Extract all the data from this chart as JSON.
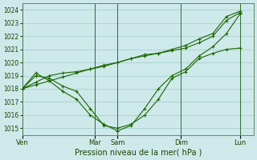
{
  "background_color": "#cee9ea",
  "grid_color": "#aacfd0",
  "line_color": "#1a6600",
  "title": "",
  "xlabel": "Pression niveau de la mer( hPa )",
  "ylim": [
    1014.5,
    1024.5
  ],
  "yticks": [
    1015,
    1016,
    1017,
    1018,
    1019,
    1020,
    1021,
    1022,
    1023,
    1024
  ],
  "day_labels": [
    "Ven",
    "Mar",
    "Sam",
    "Dim",
    "Lun"
  ],
  "day_positions": [
    0.0,
    5.33,
    7.0,
    11.67,
    16.0
  ],
  "xlim": [
    0,
    17.0
  ],
  "series1_x": [
    0,
    1,
    2,
    3,
    4,
    5,
    6,
    7,
    8,
    9,
    10,
    11,
    12,
    13,
    14,
    15,
    16
  ],
  "series1_y": [
    1018.0,
    1018.3,
    1018.6,
    1018.9,
    1019.2,
    1019.5,
    1019.8,
    1020.0,
    1020.3,
    1020.5,
    1020.7,
    1021.0,
    1021.3,
    1021.8,
    1022.2,
    1023.5,
    1023.9
  ],
  "series2_x": [
    0,
    1,
    2,
    3,
    4,
    5,
    6,
    7,
    8,
    9,
    10,
    11,
    12,
    13,
    14,
    15,
    16
  ],
  "series2_y": [
    1018.0,
    1018.5,
    1019.0,
    1019.2,
    1019.3,
    1019.5,
    1019.7,
    1020.0,
    1020.3,
    1020.6,
    1020.7,
    1020.9,
    1021.1,
    1021.5,
    1022.0,
    1023.2,
    1023.8
  ],
  "series3_x": [
    0,
    1,
    2,
    3,
    4,
    5,
    6,
    7,
    8,
    9,
    10,
    11,
    12,
    13,
    14,
    15,
    16
  ],
  "series3_y": [
    1018.0,
    1019.0,
    1018.8,
    1018.2,
    1017.8,
    1016.5,
    1015.2,
    1015.0,
    1015.3,
    1016.0,
    1017.2,
    1018.8,
    1019.3,
    1020.3,
    1020.7,
    1021.0,
    1021.1
  ],
  "series4_x": [
    0,
    1,
    2,
    3,
    4,
    5,
    6,
    7,
    8,
    9,
    10,
    11,
    12,
    13,
    14,
    15,
    16
  ],
  "series4_y": [
    1018.0,
    1019.2,
    1018.6,
    1017.8,
    1017.2,
    1016.0,
    1015.3,
    1014.8,
    1015.2,
    1016.5,
    1018.0,
    1019.0,
    1019.5,
    1020.5,
    1021.2,
    1022.2,
    1023.7
  ]
}
